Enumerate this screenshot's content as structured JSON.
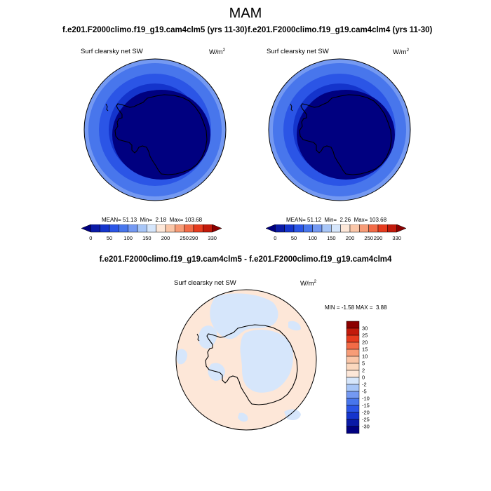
{
  "page": {
    "season": "MAM",
    "case1": "f.e201.F2000climo.f19_g19.cam4clm5 (yrs 11-30)",
    "case2": "f.e201.F2000climo.f19_g19.cam4clm4 (yrs 11-30)",
    "diff_title": "f.e201.F2000climo.f19_g19.cam4clm5 - f.e201.F2000climo.f19_g19.cam4clm4"
  },
  "chart_data": [
    {
      "type": "heatmap",
      "title": "Surf clearsky net SW",
      "units": "W/m",
      "units_exponent": "2",
      "stats": {
        "mean_label": "MEAN=",
        "mean": "51.13",
        "min_label": "Min=",
        "min": "2.18",
        "max_label": "Max=",
        "max": "103.68"
      },
      "colorbar_ticks": [
        "0",
        "50",
        "100",
        "150",
        "200",
        "250",
        "290",
        "330"
      ],
      "colorbar_colors": [
        "#000080",
        "#0a1aa6",
        "#1434cc",
        "#2b55e6",
        "#4876ec",
        "#7499f2",
        "#a8c6f7",
        "#d6e6fb",
        "#fde7d8",
        "#fac6a8",
        "#f79c77",
        "#f26b47",
        "#e63b1e",
        "#c21a0b",
        "#8b0000"
      ],
      "rings_inner_to_outer_colors": [
        "#000080",
        "#1434cc",
        "#2b55e6",
        "#4876ec",
        "#7499f2"
      ],
      "rings_inner_to_outer_level_index": [
        0,
        2,
        3,
        4,
        5
      ]
    },
    {
      "type": "heatmap",
      "title": "Surf clearsky net SW",
      "units": "W/m",
      "units_exponent": "2",
      "stats": {
        "mean_label": "MEAN=",
        "mean": "51.12",
        "min_label": "Min=",
        "min": "2.26",
        "max_label": "Max=",
        "max": "103.68"
      },
      "colorbar_ticks": [
        "0",
        "50",
        "100",
        "150",
        "200",
        "250",
        "290",
        "330"
      ],
      "colorbar_colors": [
        "#000080",
        "#0a1aa6",
        "#1434cc",
        "#2b55e6",
        "#4876ec",
        "#7499f2",
        "#a8c6f7",
        "#d6e6fb",
        "#fde7d8",
        "#fac6a8",
        "#f79c77",
        "#f26b47",
        "#e63b1e",
        "#c21a0b",
        "#8b0000"
      ],
      "rings_inner_to_outer_colors": [
        "#000080",
        "#1434cc",
        "#2b55e6",
        "#4876ec",
        "#7499f2"
      ],
      "rings_inner_to_outer_level_index": [
        0,
        2,
        3,
        4,
        5
      ]
    },
    {
      "type": "heatmap",
      "title": "Surf clearsky net SW",
      "units": "W/m",
      "units_exponent": "2",
      "stats": {
        "min_label": "MIN =",
        "min": "-1.58",
        "max_label": "MAX =",
        "max": "3.88"
      },
      "colorbar_ticks": [
        "30",
        "25",
        "20",
        "15",
        "10",
        "5",
        "2",
        "0",
        "-2",
        "-5",
        "-10",
        "-15",
        "-20",
        "-25",
        "-30"
      ],
      "colorbar_colors_top_to_bottom": [
        "#8b0000",
        "#c21a0b",
        "#e63b1e",
        "#f26b47",
        "#f79c77",
        "#fac6a8",
        "#fbd8bf",
        "#fde7d8",
        "#d6e6fb",
        "#a8c6f7",
        "#7499f2",
        "#4876ec",
        "#2b55e6",
        "#1434cc",
        "#0a1aa6",
        "#000080"
      ],
      "background_level_color": "#fde7d8",
      "patch_level_color": "#d6e6fb",
      "dominant_range": "0 to 2",
      "secondary_range": "-2 to 0"
    }
  ]
}
